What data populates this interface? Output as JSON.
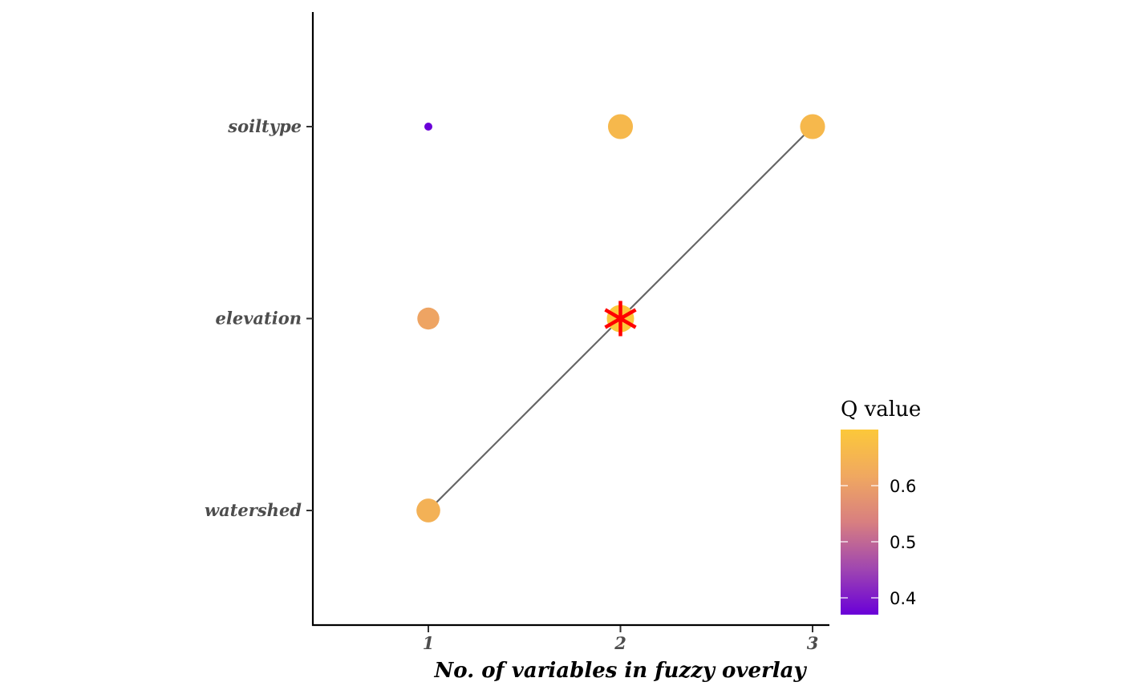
{
  "chart_data": {
    "type": "scatter",
    "title": "",
    "xlabel": "No. of variables in fuzzy overlay",
    "ylabel": "",
    "x_ticks": [
      "1",
      "2",
      "3"
    ],
    "y_categories": [
      "watershed",
      "elevation",
      "soiltype"
    ],
    "xlim": [
      0.4,
      3.6
    ],
    "points": [
      {
        "x": 1,
        "y": "soiltype",
        "q": 0.37
      },
      {
        "x": 1,
        "y": "elevation",
        "q": 0.61
      },
      {
        "x": 1,
        "y": "watershed",
        "q": 0.64
      },
      {
        "x": 2,
        "y": "soiltype",
        "q": 0.66
      },
      {
        "x": 2,
        "y": "elevation",
        "q": 0.7
      },
      {
        "x": 3,
        "y": "soiltype",
        "q": 0.66
      }
    ],
    "optimal_marker": {
      "x": 2,
      "y": "elevation",
      "color": "#ff0000"
    },
    "path": [
      {
        "x": 1,
        "y": "watershed"
      },
      {
        "x": 2,
        "y": "elevation"
      },
      {
        "x": 3,
        "y": "soiltype"
      }
    ],
    "legend": {
      "title": "Q value",
      "ticks": [
        "0.4",
        "0.5",
        "0.6"
      ],
      "tick_values": [
        0.4,
        0.5,
        0.6
      ],
      "range": [
        0.37,
        0.7
      ],
      "colors": [
        "#6a00d8",
        "#a047b0",
        "#d87f80",
        "#f0a860",
        "#fcc83a"
      ]
    },
    "grid": false
  }
}
